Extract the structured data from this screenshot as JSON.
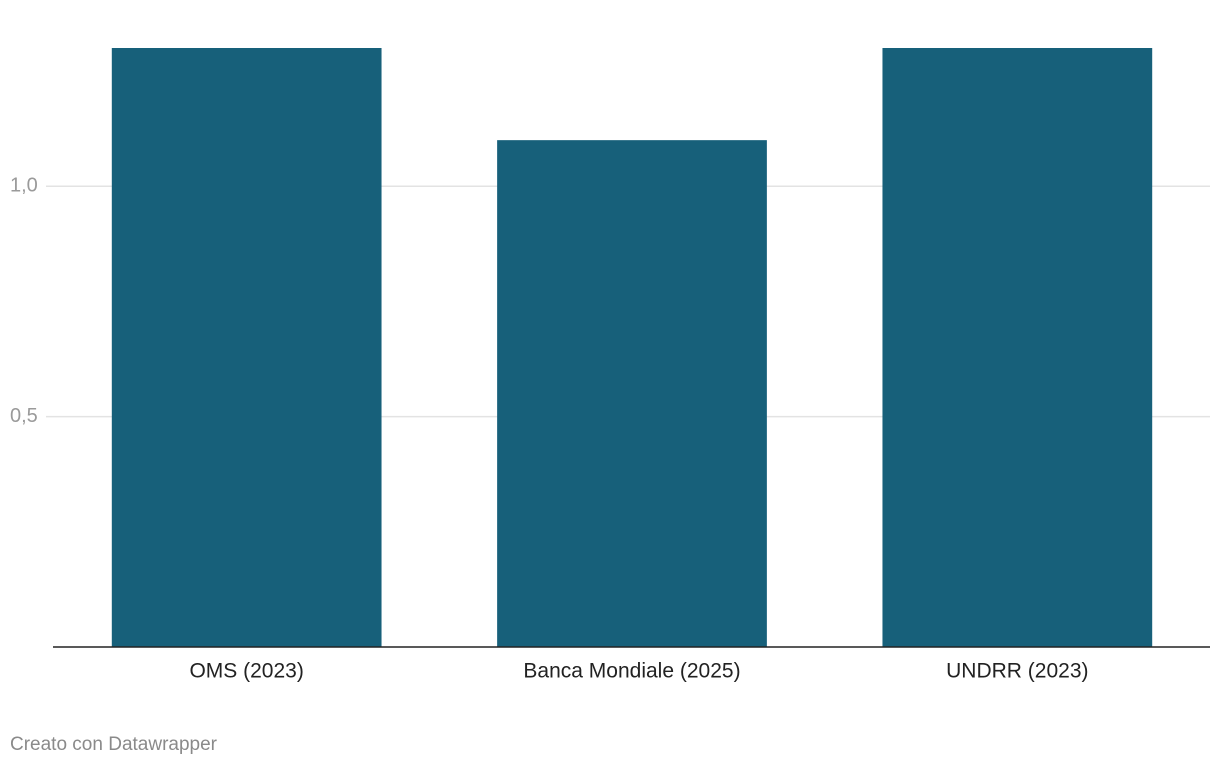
{
  "chart_data": {
    "type": "bar",
    "categories": [
      "OMS (2023)",
      "Banca Mondiale (2025)",
      "UNDRR (2023)"
    ],
    "values": [
      1.3,
      1.1,
      1.3
    ],
    "color": "#17607a",
    "ylim": [
      0,
      1.3
    ],
    "yticks": [
      {
        "value": 0.5,
        "label": "0,5"
      },
      {
        "value": 1,
        "label": "1,0"
      }
    ],
    "grid": true,
    "credit": "Creato con Datawrapper"
  }
}
